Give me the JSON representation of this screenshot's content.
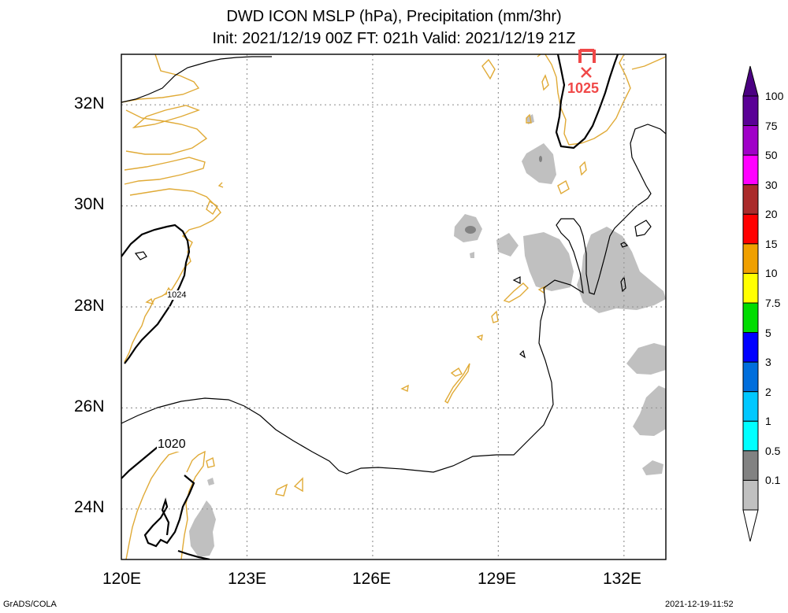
{
  "title": {
    "line1": "DWD ICON MSLP (hPa), Precipitation (mm/3hr)",
    "line2": "Init: 2021/12/19 00Z  FT: 021h  Valid: 2021/12/19 21Z"
  },
  "map": {
    "lon_range": [
      120,
      133
    ],
    "lat_range": [
      23,
      33
    ],
    "x_ticks": [
      {
        "value": 120,
        "label": "120E"
      },
      {
        "value": 123,
        "label": "123E"
      },
      {
        "value": 126,
        "label": "126E"
      },
      {
        "value": 129,
        "label": "129E"
      },
      {
        "value": 132,
        "label": "132E"
      }
    ],
    "y_ticks": [
      {
        "value": 24,
        "label": "24N"
      },
      {
        "value": 26,
        "label": "26N"
      },
      {
        "value": 28,
        "label": "28N"
      },
      {
        "value": 30,
        "label": "30N"
      },
      {
        "value": 32,
        "label": "32N"
      }
    ],
    "gridlines": true,
    "colors": {
      "coast": "#e0aa36",
      "isobar": "#000000",
      "high": "#f04848",
      "precip_light": "#c0c0c0",
      "precip_mid": "#828282"
    },
    "isobar_labels": [
      {
        "text": "1024",
        "lon": 121.35,
        "lat": 28.2
      },
      {
        "text": "1020",
        "lon": 121.2,
        "lat": 24.9
      }
    ],
    "high_center": {
      "symbol": "H",
      "value": "1025",
      "lon": 131.0,
      "lat": 32.6
    }
  },
  "legend": {
    "entries": [
      {
        "label": "100",
        "color": "#5a0096"
      },
      {
        "label": "75",
        "color": "#a000c8"
      },
      {
        "label": "50",
        "color": "#ff00ff"
      },
      {
        "label": "30",
        "color": "#aa2b2b"
      },
      {
        "label": "20",
        "color": "#ff0000"
      },
      {
        "label": "15",
        "color": "#f0a000"
      },
      {
        "label": "10",
        "color": "#ffff00"
      },
      {
        "label": "7.5",
        "color": "#00dc00"
      },
      {
        "label": "5",
        "color": "#0000ff"
      },
      {
        "label": "3",
        "color": "#006edc"
      },
      {
        "label": "2",
        "color": "#00c8ff"
      },
      {
        "label": "1",
        "color": "#00ffff"
      },
      {
        "label": "0.5",
        "color": "#828282"
      },
      {
        "label": "0.1",
        "color": "#c0c0c0"
      }
    ],
    "top_color": "#4b0082"
  },
  "footer": {
    "left": "GrADS/COLA",
    "right": "2021-12-19-11:52"
  }
}
